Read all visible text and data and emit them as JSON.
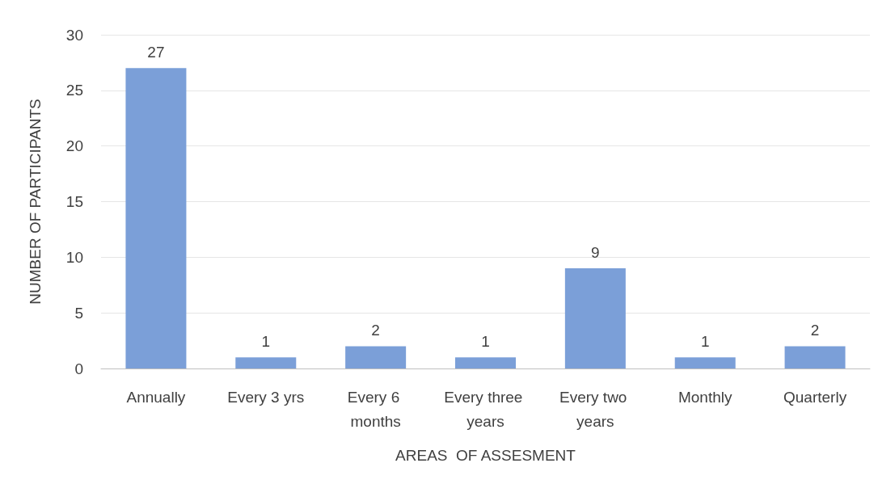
{
  "chart_data": {
    "type": "bar",
    "xlabel": "AREAS  OF ASSESMENT",
    "ylabel": "NUMBER OF PARTICIPANTS",
    "categories": [
      "Annually",
      "Every 3 yrs",
      "Every 6 months",
      "Every three years",
      "Every two years",
      "Monthly",
      "Quarterly"
    ],
    "values": [
      27,
      1,
      2,
      1,
      9,
      1,
      2
    ],
    "color": "#7b9fd8",
    "ylim": [
      0,
      30
    ],
    "yticks": [
      0,
      5,
      10,
      15,
      20,
      25,
      30
    ],
    "grid": "y",
    "data_labels": true
  }
}
